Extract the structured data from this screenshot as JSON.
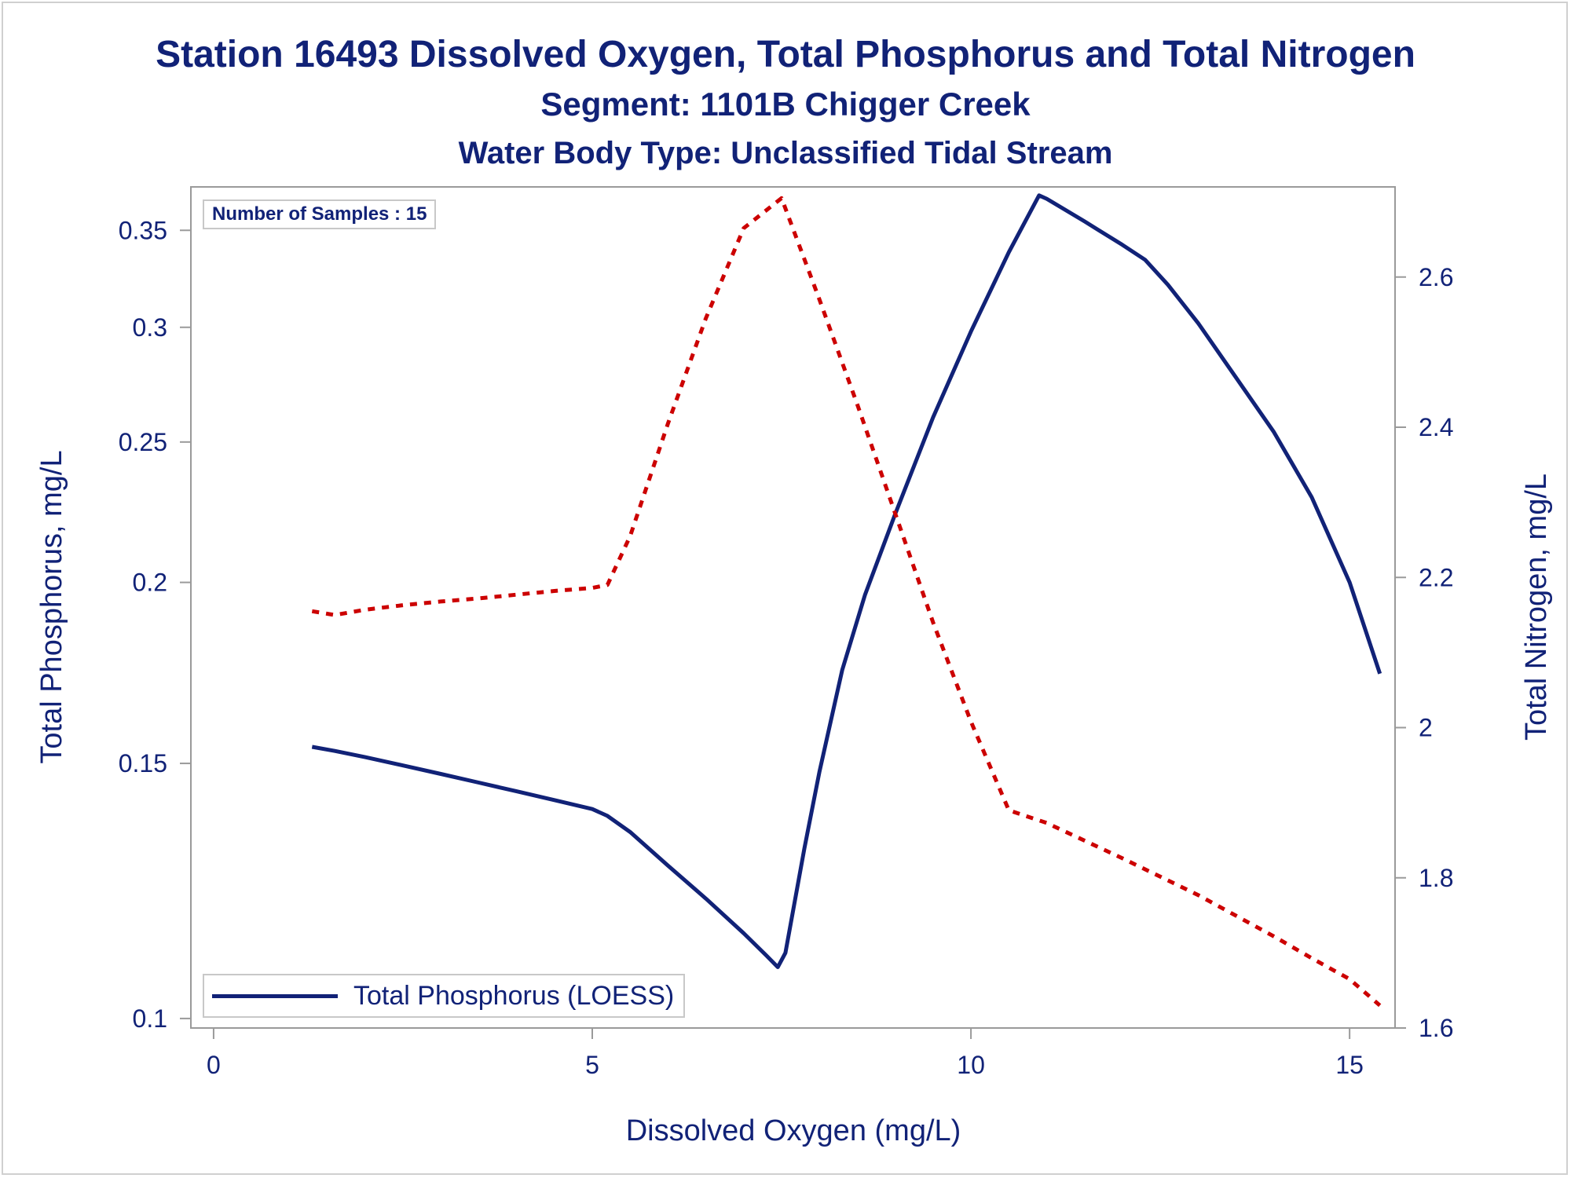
{
  "chart_data": {
    "type": "line",
    "title": "Station 16493  Dissolved Oxygen, Total Phosphorus and Total Nitrogen",
    "subtitle": "Segment: 1101B  Chigger Creek",
    "subtitle2": "Water Body Type: Unclassified Tidal Stream",
    "xlabel": "Dissolved Oxygen (mg/L)",
    "ylabel": "Total Phosphorus, mg/L",
    "y2label": "Total Nitrogen, mg/L",
    "xlim": [
      -0.3,
      15.6
    ],
    "ylim": [
      0.0985,
      0.375
    ],
    "y2lim": [
      1.6,
      2.72
    ],
    "yscale": "log",
    "y2scale": "linear",
    "xticks": [
      0,
      5,
      10,
      15
    ],
    "xtick_labels": [
      "0",
      "5",
      "10",
      "15"
    ],
    "yticks": [
      0.1,
      0.15,
      0.2,
      0.25,
      0.3,
      0.35
    ],
    "ytick_labels": [
      "0.1",
      "0.15",
      "0.2",
      "0.25",
      "0.3",
      "0.35"
    ],
    "y2ticks": [
      1.6,
      1.8,
      2.0,
      2.2,
      2.4,
      2.6
    ],
    "y2tick_labels": [
      "1.6",
      "1.8",
      "2",
      "2.2",
      "2.4",
      "2.6"
    ],
    "grid": false,
    "legend_position": "bottom-left",
    "inset_text": "Number of Samples : 15",
    "series": [
      {
        "name": "Total Phosphorus (LOESS)",
        "axis": "left",
        "style": "solid",
        "color": "#112277",
        "x": [
          1.3,
          1.6,
          2.0,
          2.5,
          3.0,
          3.5,
          4.0,
          4.5,
          5.0,
          5.2,
          5.5,
          6.0,
          6.5,
          7.0,
          7.3,
          7.45,
          7.55,
          7.8,
          8.0,
          8.3,
          8.6,
          9.0,
          9.5,
          10.0,
          10.5,
          10.9,
          11.0,
          11.5,
          12.0,
          12.3,
          12.6,
          13.0,
          13.5,
          14.0,
          14.5,
          15.0,
          15.4
        ],
        "y": [
          0.154,
          0.153,
          0.1515,
          0.1495,
          0.1475,
          0.1455,
          0.1435,
          0.1415,
          0.1395,
          0.138,
          0.1345,
          0.1275,
          0.121,
          0.1145,
          0.1105,
          0.1085,
          0.111,
          0.131,
          0.148,
          0.174,
          0.196,
          0.223,
          0.26,
          0.298,
          0.338,
          0.37,
          0.368,
          0.355,
          0.342,
          0.334,
          0.321,
          0.302,
          0.277,
          0.254,
          0.229,
          0.2,
          0.173
        ]
      },
      {
        "name": "",
        "axis": "right",
        "style": "dotted",
        "color": "#cc0000",
        "x": [
          1.3,
          1.6,
          2.0,
          2.5,
          3.0,
          3.5,
          4.0,
          4.5,
          5.0,
          5.2,
          5.5,
          6.0,
          6.5,
          7.0,
          7.5,
          8.0,
          8.5,
          9.0,
          9.5,
          10.0,
          10.5,
          11.0,
          12.0,
          13.0,
          14.0,
          14.5,
          15.0,
          15.4
        ],
        "y": [
          2.155,
          2.15,
          2.157,
          2.163,
          2.168,
          2.172,
          2.177,
          2.182,
          2.186,
          2.19,
          2.255,
          2.405,
          2.545,
          2.665,
          2.705,
          2.57,
          2.43,
          2.285,
          2.14,
          2.008,
          1.89,
          1.873,
          1.826,
          1.777,
          1.722,
          1.693,
          1.665,
          1.63
        ]
      }
    ]
  },
  "legend": {
    "label": "Total Phosphorus (LOESS)",
    "color": "#112277"
  }
}
